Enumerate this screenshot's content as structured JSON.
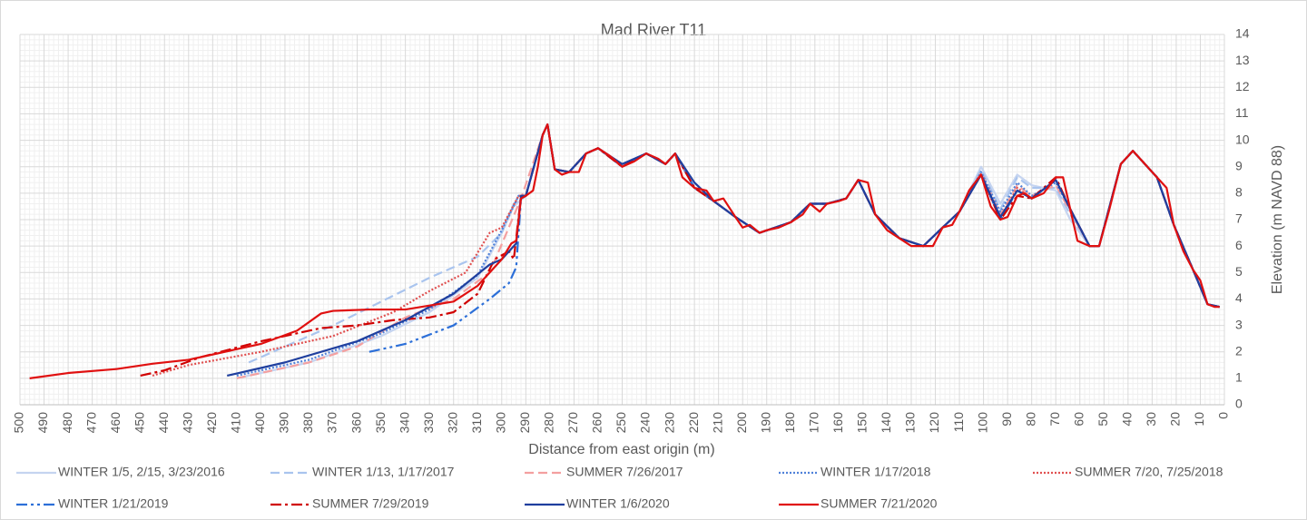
{
  "chart_data": {
    "type": "line",
    "title": "Mad River T11",
    "x_label": "Distance from east origin (m)",
    "y_label": "Elevation (m NAVD 88)",
    "xlim": [
      500,
      0
    ],
    "ylim": [
      0,
      14
    ],
    "xticks": [
      500,
      490,
      480,
      470,
      460,
      450,
      440,
      430,
      420,
      410,
      400,
      390,
      380,
      370,
      360,
      350,
      340,
      330,
      320,
      310,
      300,
      290,
      280,
      270,
      260,
      250,
      240,
      230,
      220,
      210,
      200,
      190,
      180,
      170,
      160,
      150,
      140,
      130,
      120,
      110,
      100,
      90,
      80,
      70,
      60,
      50,
      40,
      30,
      20,
      10,
      0
    ],
    "yticks": [
      0,
      1,
      2,
      3,
      4,
      5,
      6,
      7,
      8,
      9,
      10,
      11,
      12,
      13,
      14
    ],
    "y_axis_side": "right",
    "grid": true,
    "legend": "bottom",
    "series": [
      {
        "name": "WINTER 1/5, 2/15, 3/23/2016",
        "color": "#c5d4f0",
        "style": "solid",
        "x": [
          410,
          380,
          350,
          330,
          310,
          300,
          295,
          290,
          283,
          281,
          278,
          272,
          265,
          260,
          250,
          240,
          232,
          228,
          220,
          212,
          203,
          193,
          180,
          172,
          165,
          157,
          152,
          145,
          135,
          125,
          117,
          110,
          101,
          93,
          86,
          80,
          70,
          64,
          56,
          52,
          43,
          38,
          28,
          21,
          13,
          7,
          2
        ],
        "values": [
          1.0,
          1.6,
          2.6,
          3.5,
          4.8,
          6.5,
          7.5,
          7.9,
          10.2,
          10.6,
          8.9,
          8.8,
          9.5,
          9.7,
          9.0,
          9.5,
          9.1,
          9.5,
          8.2,
          7.7,
          7.1,
          6.5,
          6.9,
          7.6,
          7.6,
          7.8,
          8.5,
          7.2,
          6.3,
          6.0,
          6.7,
          7.3,
          9.0,
          7.6,
          8.7,
          8.3,
          8.1,
          7.0,
          6.0,
          6.0,
          9.1,
          9.6,
          8.6,
          6.8,
          5.1,
          3.8,
          3.7
        ]
      },
      {
        "name": "WINTER 1/13, 1/17/2017",
        "color": "#a9c4ee",
        "style": "dashed",
        "x": [
          405,
          370,
          350,
          330,
          310,
          300,
          295,
          290,
          283,
          281,
          278,
          272,
          265,
          260,
          250,
          240,
          232,
          228,
          220,
          212,
          203,
          193,
          180,
          172,
          165,
          157,
          152,
          145,
          135,
          125,
          117,
          110,
          101,
          93,
          86,
          80,
          70,
          64,
          56,
          52,
          43,
          38,
          28,
          21,
          13,
          7,
          2
        ],
        "values": [
          1.6,
          3.0,
          3.9,
          4.8,
          5.6,
          6.5,
          7.6,
          7.9,
          10.2,
          10.6,
          8.9,
          8.8,
          9.5,
          9.7,
          9.0,
          9.5,
          9.1,
          9.5,
          8.2,
          7.7,
          7.1,
          6.5,
          6.9,
          7.6,
          7.6,
          7.8,
          8.5,
          7.2,
          6.3,
          6.0,
          6.7,
          7.3,
          8.9,
          7.4,
          8.6,
          8.2,
          8.2,
          7.2,
          6.0,
          6.0,
          9.1,
          9.6,
          8.6,
          6.8,
          5.1,
          3.8,
          3.7
        ]
      },
      {
        "name": "SUMMER 7/26/2017",
        "color": "#f4a0a0",
        "style": "dashed",
        "x": [
          410,
          380,
          360,
          340,
          320,
          305,
          298,
          292,
          283,
          281,
          278,
          272,
          265,
          260,
          250,
          240,
          232,
          228,
          220,
          212,
          203,
          193,
          180,
          172,
          165,
          157,
          152,
          145,
          135,
          125,
          117,
          110,
          101,
          93,
          86,
          80,
          70,
          64,
          56,
          52,
          43,
          38,
          28,
          21,
          13,
          7,
          2
        ],
        "values": [
          1.0,
          1.6,
          2.2,
          3.3,
          4.0,
          5.0,
          6.5,
          7.8,
          10.2,
          10.6,
          8.9,
          8.8,
          9.5,
          9.7,
          9.0,
          9.5,
          9.1,
          9.5,
          8.2,
          7.7,
          7.1,
          6.5,
          6.9,
          7.6,
          7.6,
          7.8,
          8.5,
          7.2,
          6.3,
          6.0,
          6.7,
          7.3,
          8.8,
          7.2,
          8.3,
          7.9,
          8.3,
          7.3,
          6.0,
          6.0,
          9.1,
          9.6,
          8.6,
          6.8,
          5.1,
          3.8,
          3.7
        ]
      },
      {
        "name": "WINTER 1/17/2018",
        "color": "#4f81d9",
        "style": "dotted",
        "x": [
          410,
          380,
          350,
          330,
          310,
          300,
          293,
          290,
          283,
          281,
          278,
          272,
          265,
          260,
          250,
          240,
          232,
          228,
          220,
          212,
          203,
          193,
          180,
          172,
          165,
          157,
          152,
          145,
          135,
          125,
          117,
          110,
          101,
          93,
          86,
          80,
          70,
          64,
          56,
          52,
          43,
          38,
          28,
          21,
          13,
          7,
          2
        ],
        "values": [
          1.1,
          1.7,
          2.7,
          3.6,
          4.9,
          6.6,
          7.9,
          7.9,
          10.2,
          10.6,
          8.9,
          8.8,
          9.5,
          9.7,
          9.0,
          9.5,
          9.1,
          9.5,
          8.2,
          7.7,
          7.1,
          6.5,
          6.9,
          7.6,
          7.6,
          7.8,
          8.5,
          7.2,
          6.3,
          6.0,
          6.7,
          7.3,
          8.8,
          7.3,
          8.4,
          7.9,
          8.4,
          7.4,
          6.0,
          6.0,
          9.1,
          9.6,
          8.6,
          6.8,
          5.1,
          3.8,
          3.7
        ]
      },
      {
        "name": "SUMMER 7/20, 7/25/2018",
        "color": "#e05050",
        "style": "dotted",
        "x": [
          445,
          430,
          400,
          370,
          345,
          330,
          315,
          305,
          300,
          293,
          290,
          283,
          281,
          278,
          272,
          265,
          260,
          250,
          240,
          232,
          228,
          220,
          212,
          203,
          193,
          180,
          172,
          165,
          157,
          152,
          145,
          135,
          125,
          117,
          110,
          101,
          93,
          86,
          80,
          70,
          64,
          56,
          52,
          43,
          38,
          28,
          21,
          13,
          7,
          2
        ],
        "values": [
          1.1,
          1.5,
          2.0,
          2.6,
          3.5,
          4.3,
          5.0,
          6.5,
          6.7,
          7.9,
          7.9,
          10.2,
          10.6,
          8.9,
          8.8,
          9.5,
          9.7,
          9.0,
          9.5,
          9.1,
          9.5,
          8.2,
          7.7,
          7.1,
          6.5,
          6.9,
          7.6,
          7.6,
          7.8,
          8.5,
          7.2,
          6.3,
          6.0,
          6.7,
          7.3,
          8.7,
          7.1,
          8.2,
          7.8,
          8.5,
          7.4,
          6.0,
          6.0,
          9.1,
          9.6,
          8.6,
          6.8,
          5.1,
          3.8,
          3.7
        ]
      },
      {
        "name": "WINTER 1/21/2019",
        "color": "#2c6fd8",
        "style": "dashdotdot",
        "x": [
          355,
          340,
          320,
          305,
          297,
          294,
          292,
          290,
          283,
          281,
          278,
          272,
          265,
          260,
          250,
          240,
          232,
          228,
          220,
          212,
          203,
          193,
          180,
          172,
          165,
          157,
          152,
          145,
          135,
          125,
          117,
          110,
          101,
          93,
          86,
          80,
          70,
          64,
          56,
          52,
          43,
          38,
          28,
          21,
          13,
          7,
          2
        ],
        "values": [
          2.0,
          2.3,
          3.0,
          4.0,
          4.6,
          5.2,
          7.8,
          7.9,
          10.2,
          10.6,
          8.9,
          8.8,
          9.5,
          9.7,
          9.0,
          9.5,
          9.1,
          9.5,
          8.2,
          7.7,
          7.1,
          6.5,
          6.9,
          7.6,
          7.6,
          7.8,
          8.5,
          7.2,
          6.3,
          6.0,
          6.7,
          7.3,
          8.7,
          7.0,
          8.1,
          7.8,
          8.5,
          7.4,
          6.0,
          6.0,
          9.1,
          9.6,
          8.6,
          6.8,
          5.1,
          3.8,
          3.7
        ]
      },
      {
        "name": "SUMMER 7/29/2019",
        "color": "#d00000",
        "style": "dashdot",
        "x": [
          450,
          440,
          425,
          400,
          385,
          375,
          360,
          345,
          330,
          320,
          310,
          303,
          297,
          295,
          292,
          290,
          283,
          281,
          278,
          272,
          265,
          260,
          250,
          240,
          232,
          228,
          220,
          212,
          203,
          193,
          180,
          172,
          165,
          157,
          152,
          145,
          135,
          125,
          117,
          110,
          101,
          93,
          86,
          80,
          70,
          64,
          56,
          52,
          43,
          38,
          28,
          21,
          13,
          7,
          2
        ],
        "values": [
          1.1,
          1.3,
          1.8,
          2.4,
          2.7,
          2.9,
          3.0,
          3.2,
          3.3,
          3.5,
          4.2,
          5.5,
          5.8,
          5.5,
          7.9,
          7.9,
          10.2,
          10.6,
          8.9,
          8.8,
          9.5,
          9.7,
          9.0,
          9.5,
          9.1,
          9.5,
          8.2,
          7.7,
          7.1,
          6.5,
          6.9,
          7.6,
          7.6,
          7.8,
          8.5,
          7.2,
          6.3,
          6.0,
          6.7,
          7.3,
          8.7,
          7.0,
          7.9,
          7.8,
          8.6,
          7.4,
          6.0,
          6.0,
          9.1,
          9.6,
          8.6,
          6.8,
          5.1,
          3.8,
          3.7
        ]
      },
      {
        "name": "WINTER 1/6/2020",
        "color": "#1f3f9e",
        "style": "solid",
        "x": [
          414,
          390,
          360,
          340,
          320,
          305,
          300,
          294,
          292,
          290,
          283,
          281,
          278,
          272,
          265,
          260,
          250,
          240,
          232,
          228,
          220,
          212,
          203,
          193,
          180,
          172,
          165,
          157,
          152,
          145,
          135,
          125,
          117,
          110,
          101,
          93,
          86,
          80,
          70,
          64,
          56,
          52,
          43,
          38,
          28,
          21,
          13,
          7,
          2
        ],
        "values": [
          1.1,
          1.6,
          2.4,
          3.2,
          4.2,
          5.3,
          5.5,
          6.1,
          7.9,
          7.9,
          10.2,
          10.6,
          8.9,
          8.8,
          9.5,
          9.7,
          9.1,
          9.5,
          9.1,
          9.5,
          8.4,
          7.7,
          7.1,
          6.5,
          6.9,
          7.6,
          7.6,
          7.8,
          8.5,
          7.2,
          6.3,
          6.0,
          6.7,
          7.3,
          8.7,
          7.1,
          8.1,
          7.8,
          8.5,
          7.4,
          6.0,
          6.0,
          9.1,
          9.6,
          8.6,
          6.8,
          5.1,
          3.8,
          3.7
        ]
      },
      {
        "name": "SUMMER 7/21/2020",
        "color": "#e01010",
        "style": "solid",
        "x": [
          496,
          480,
          460,
          445,
          430,
          420,
          400,
          385,
          375,
          370,
          355,
          340,
          320,
          310,
          300,
          296,
          294,
          292,
          290,
          287,
          285,
          283,
          281,
          278,
          275,
          272,
          268,
          265,
          260,
          255,
          250,
          245,
          240,
          235,
          232,
          228,
          225,
          220,
          215,
          212,
          208,
          203,
          200,
          197,
          193,
          190,
          185,
          180,
          175,
          172,
          168,
          165,
          160,
          157,
          152,
          148,
          145,
          140,
          135,
          130,
          125,
          121,
          117,
          113,
          110,
          106,
          101,
          97,
          93,
          90,
          86,
          83,
          80,
          75,
          70,
          67,
          64,
          61,
          56,
          52,
          48,
          43,
          38,
          33,
          28,
          24,
          21,
          17,
          13,
          10,
          7,
          4,
          2
        ],
        "values": [
          1.0,
          1.2,
          1.35,
          1.55,
          1.7,
          1.9,
          2.3,
          2.8,
          3.45,
          3.55,
          3.6,
          3.6,
          3.9,
          4.5,
          5.5,
          6.1,
          6.2,
          7.8,
          7.9,
          8.1,
          9.0,
          10.2,
          10.6,
          8.9,
          8.7,
          8.8,
          8.8,
          9.5,
          9.7,
          9.4,
          9.0,
          9.2,
          9.5,
          9.3,
          9.1,
          9.5,
          8.6,
          8.2,
          8.1,
          7.7,
          7.8,
          7.1,
          6.7,
          6.8,
          6.5,
          6.6,
          6.7,
          6.9,
          7.2,
          7.6,
          7.3,
          7.6,
          7.7,
          7.8,
          8.5,
          8.4,
          7.2,
          6.6,
          6.3,
          6.0,
          6.0,
          6.0,
          6.7,
          6.8,
          7.3,
          8.1,
          8.7,
          7.5,
          7.0,
          7.1,
          7.9,
          8.0,
          7.8,
          8.0,
          8.6,
          8.6,
          7.4,
          6.2,
          6.0,
          6.0,
          7.3,
          9.1,
          9.6,
          9.1,
          8.6,
          8.2,
          6.8,
          5.8,
          5.1,
          4.7,
          3.8,
          3.7,
          3.7
        ]
      }
    ]
  }
}
